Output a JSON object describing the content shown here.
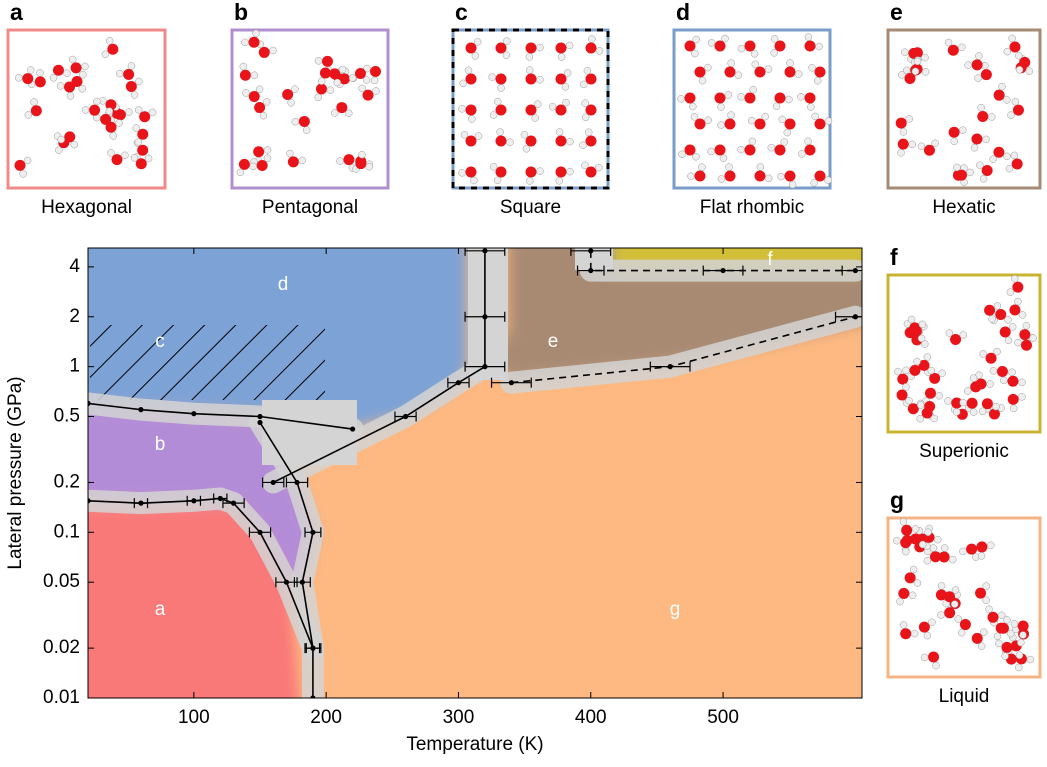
{
  "panels": [
    {
      "letter": "a",
      "name": "Hexagonal",
      "color": "#f08a8a"
    },
    {
      "letter": "b",
      "name": "Pentagonal",
      "color": "#b08fcf"
    },
    {
      "letter": "c",
      "name": "Square",
      "color": "#7a9cc9"
    },
    {
      "letter": "d",
      "name": "Flat rhombic",
      "color": "#7a9cc9"
    },
    {
      "letter": "e",
      "name": "Hexatic",
      "color": "#a58a74"
    },
    {
      "letter": "f",
      "name": "Superionic",
      "color": "#c8b431"
    },
    {
      "letter": "g",
      "name": "Liquid",
      "color": "#f4b483"
    }
  ],
  "chart_data": {
    "type": "line",
    "xlabel": "Temperature (K)",
    "ylabel": "Lateral pressure (GPa)",
    "xlim": [
      20,
      605
    ],
    "xticks": [
      100,
      200,
      300,
      400,
      500
    ],
    "ylim": [
      0.01,
      5.2
    ],
    "yticks": [
      0.01,
      0.02,
      0.05,
      0.1,
      0.2,
      0.5,
      1,
      2,
      4
    ],
    "ylog": true,
    "region_labels": [
      "a",
      "b",
      "c",
      "d",
      "e",
      "f",
      "g"
    ],
    "series": [
      {
        "color": "#000000",
        "dash": false,
        "x": [
          20,
          60,
          100,
          120,
          130,
          150,
          170,
          190,
          190
        ],
        "values": [
          0.155,
          0.15,
          0.155,
          0.16,
          0.15,
          0.1,
          0.05,
          0.02,
          0.01
        ],
        "xerr": [
          null,
          5,
          5,
          5,
          8,
          8,
          8,
          5,
          null
        ]
      },
      {
        "color": "#000000",
        "dash": false,
        "x": [
          150,
          178,
          190,
          182,
          190
        ],
        "values": [
          0.46,
          0.2,
          0.1,
          0.05,
          0.02
        ],
        "xerr": [
          null,
          8,
          6,
          6,
          6
        ]
      },
      {
        "color": "#000000",
        "dash": false,
        "x": [
          20,
          60,
          100,
          150,
          220
        ],
        "values": [
          0.6,
          0.55,
          0.52,
          0.5,
          0.42
        ],
        "xerr": [
          null,
          null,
          null,
          null,
          null
        ]
      },
      {
        "color": "#000000",
        "dash": false,
        "x": [
          160,
          260,
          300,
          320,
          320,
          320
        ],
        "values": [
          0.2,
          0.5,
          0.8,
          1,
          2,
          5
        ],
        "xerr": [
          8,
          8,
          8,
          15,
          15,
          15
        ]
      },
      {
        "color": "#000000",
        "dash": true,
        "x": [
          340,
          460,
          600
        ],
        "values": [
          0.8,
          1,
          2
        ],
        "xerr": [
          15,
          15,
          15
        ]
      },
      {
        "color": "#000000",
        "dash": true,
        "x": [
          400,
          400,
          500,
          600
        ],
        "values": [
          5,
          3.8,
          3.8,
          3.8
        ],
        "xerr": [
          15,
          10,
          15,
          10
        ]
      }
    ]
  }
}
